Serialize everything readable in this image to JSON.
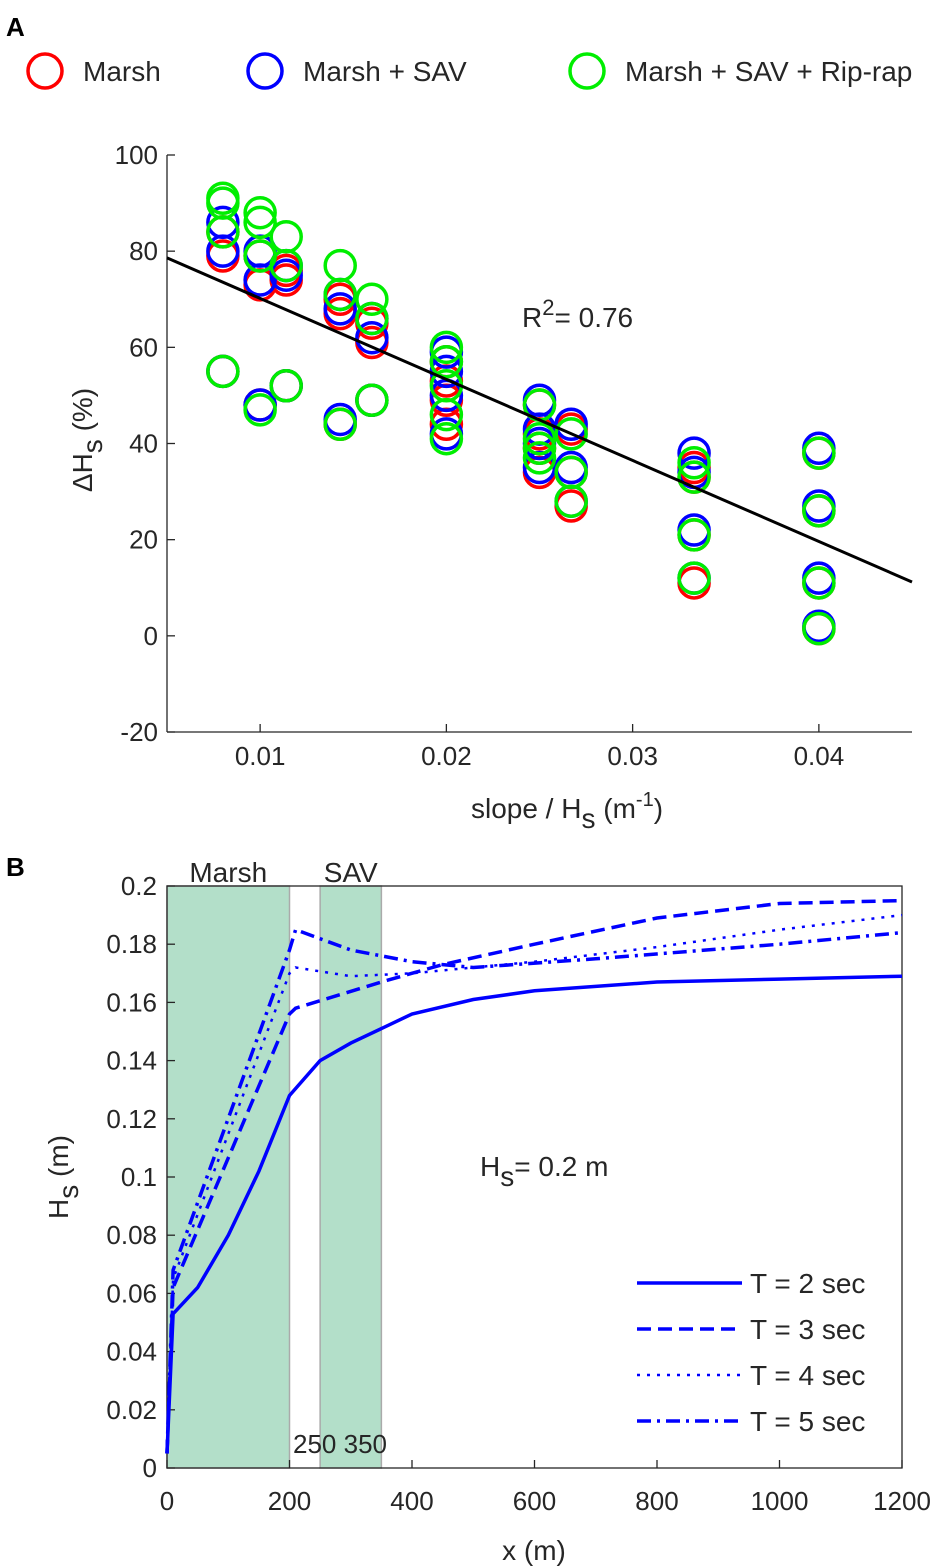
{
  "chart_data": [
    {
      "panel": "A",
      "type": "scatter",
      "legend": {
        "placement": "top",
        "entries": [
          "Marsh",
          "Marsh + SAV",
          "Marsh + SAV + Rip-rap"
        ]
      },
      "colors": {
        "Marsh": "#ff0000",
        "Marsh + SAV": "#0000ff",
        "Marsh + SAV + Rip-rap": "#00ee00",
        "fit": "#000000"
      },
      "xlabel": {
        "main": "slope / H",
        "sub": "s",
        "rest": " (m",
        "sup": "-1",
        "end": ")"
      },
      "ylabel": {
        "main": "ΔH",
        "sub": "s",
        "rest": " (%)"
      },
      "xlim": [
        0.005,
        0.045
      ],
      "ylim": [
        -20,
        100
      ],
      "xticks": [
        "0.01",
        "0.02",
        "0.03",
        "0.04"
      ],
      "yticks": [
        "-20",
        "0",
        "20",
        "40",
        "60",
        "80",
        "100"
      ],
      "annotation": {
        "main": "R",
        "sup": "2",
        "rest": "= 0.76"
      },
      "fit_line": {
        "x": [
          0.005,
          0.045
        ],
        "y": [
          78.6,
          11.2
        ]
      },
      "series": [
        {
          "name": "Marsh",
          "points": [
            [
              0.008,
              79
            ],
            [
              0.008,
              84
            ],
            [
              0.008,
              55
            ],
            [
              0.01,
              73
            ],
            [
              0.01,
              79
            ],
            [
              0.01,
              48
            ],
            [
              0.0114,
              74
            ],
            [
              0.0114,
              76
            ],
            [
              0.0114,
              52
            ],
            [
              0.0143,
              67
            ],
            [
              0.0143,
              70
            ],
            [
              0.0143,
              44
            ],
            [
              0.016,
              61
            ],
            [
              0.016,
              65
            ],
            [
              0.016,
              49
            ],
            [
              0.02,
              44
            ],
            [
              0.02,
              49
            ],
            [
              0.02,
              53
            ],
            [
              0.02,
              57
            ],
            [
              0.025,
              34
            ],
            [
              0.025,
              39
            ],
            [
              0.025,
              42
            ],
            [
              0.025,
              48
            ],
            [
              0.0267,
              27
            ],
            [
              0.0267,
              34
            ],
            [
              0.0267,
              43
            ],
            [
              0.0333,
              11
            ],
            [
              0.0333,
              21
            ],
            [
              0.0333,
              33
            ],
            [
              0.0333,
              35
            ],
            [
              0.04,
              1.5
            ],
            [
              0.04,
              11
            ],
            [
              0.04,
              26
            ],
            [
              0.04,
              38
            ]
          ]
        },
        {
          "name": "Marsh + SAV",
          "points": [
            [
              0.008,
              80
            ],
            [
              0.008,
              86
            ],
            [
              0.008,
              55
            ],
            [
              0.01,
              74
            ],
            [
              0.01,
              80
            ],
            [
              0.01,
              48
            ],
            [
              0.0114,
              75
            ],
            [
              0.0114,
              77
            ],
            [
              0.0114,
              52
            ],
            [
              0.0143,
              68
            ],
            [
              0.0143,
              71
            ],
            [
              0.0143,
              45
            ],
            [
              0.016,
              62
            ],
            [
              0.016,
              66
            ],
            [
              0.016,
              49
            ],
            [
              0.02,
              42
            ],
            [
              0.02,
              50
            ],
            [
              0.02,
              55
            ],
            [
              0.02,
              59
            ],
            [
              0.025,
              35
            ],
            [
              0.025,
              40
            ],
            [
              0.025,
              43
            ],
            [
              0.025,
              49
            ],
            [
              0.0267,
              28
            ],
            [
              0.0267,
              35
            ],
            [
              0.0267,
              44
            ],
            [
              0.0333,
              12
            ],
            [
              0.0333,
              22
            ],
            [
              0.0333,
              34
            ],
            [
              0.0333,
              38
            ],
            [
              0.04,
              2
            ],
            [
              0.04,
              12
            ],
            [
              0.04,
              27
            ],
            [
              0.04,
              39
            ]
          ]
        },
        {
          "name": "Marsh + SAV + Rip-rap",
          "points": [
            [
              0.008,
              84
            ],
            [
              0.008,
              90
            ],
            [
              0.008,
              91
            ],
            [
              0.008,
              55
            ],
            [
              0.01,
              79
            ],
            [
              0.01,
              86
            ],
            [
              0.01,
              88
            ],
            [
              0.01,
              47
            ],
            [
              0.0114,
              77
            ],
            [
              0.0114,
              83
            ],
            [
              0.0114,
              52
            ],
            [
              0.0143,
              71
            ],
            [
              0.0143,
              77
            ],
            [
              0.0143,
              44
            ],
            [
              0.016,
              66
            ],
            [
              0.016,
              70
            ],
            [
              0.016,
              49
            ],
            [
              0.02,
              41
            ],
            [
              0.02,
              46
            ],
            [
              0.02,
              52
            ],
            [
              0.02,
              57
            ],
            [
              0.02,
              60
            ],
            [
              0.025,
              37
            ],
            [
              0.025,
              39
            ],
            [
              0.025,
              41
            ],
            [
              0.025,
              48
            ],
            [
              0.0267,
              28
            ],
            [
              0.0267,
              34
            ],
            [
              0.0267,
              42
            ],
            [
              0.0333,
              12
            ],
            [
              0.0333,
              21
            ],
            [
              0.0333,
              33
            ],
            [
              0.0333,
              36
            ],
            [
              0.04,
              1.5
            ],
            [
              0.04,
              11
            ],
            [
              0.04,
              26
            ],
            [
              0.04,
              38
            ]
          ]
        }
      ]
    },
    {
      "panel": "B",
      "type": "line",
      "xlabel": "x (m)",
      "ylabel": {
        "main": "H",
        "sub": "s",
        "rest": " (m)"
      },
      "xlim": [
        0,
        1200
      ],
      "ylim": [
        0,
        0.2
      ],
      "xticks": [
        "0",
        "200",
        "400",
        "600",
        "800",
        "1000",
        "1200"
      ],
      "yticks": [
        "0",
        "0.02",
        "0.04",
        "0.06",
        "0.08",
        "0.1",
        "0.12",
        "0.14",
        "0.16",
        "0.18",
        "0.2"
      ],
      "regions": [
        {
          "label": "Marsh",
          "x": [
            0,
            200
          ],
          "color": "#b3dfc9"
        },
        {
          "label": "SAV",
          "x": [
            250,
            350
          ],
          "color": "#b3dfc9"
        }
      ],
      "region_annotation": "250 350",
      "annotation": {
        "main": "H",
        "sub": "s",
        "rest": "= 0.2 m"
      },
      "legend": {
        "placement": "bottom-right"
      },
      "line_color": "#0000ff",
      "series": [
        {
          "name": "T = 2 sec",
          "style": "solid",
          "x": [
            0,
            10,
            50,
            100,
            150,
            200,
            250,
            300,
            350,
            400,
            500,
            600,
            800,
            1000,
            1200
          ],
          "y": [
            0.005,
            0.053,
            0.062,
            0.08,
            0.102,
            0.128,
            0.14,
            0.146,
            0.151,
            0.156,
            0.161,
            0.164,
            0.167,
            0.168,
            0.169
          ]
        },
        {
          "name": "T = 3 sec",
          "style": "dashed",
          "x": [
            0,
            10,
            200,
            210,
            350,
            450,
            600,
            800,
            1000,
            1200
          ],
          "y": [
            0.005,
            0.062,
            0.156,
            0.158,
            0.167,
            0.173,
            0.18,
            0.189,
            0.194,
            0.195
          ]
        },
        {
          "name": "T = 4 sec",
          "style": "dotted",
          "x": [
            0,
            10,
            200,
            210,
            300,
            400,
            600,
            800,
            1000,
            1200
          ],
          "y": [
            0.005,
            0.065,
            0.17,
            0.172,
            0.169,
            0.17,
            0.174,
            0.179,
            0.185,
            0.19
          ]
        },
        {
          "name": "T = 5 sec",
          "style": "dashdot",
          "x": [
            0,
            10,
            200,
            210,
            300,
            400,
            500,
            700,
            1000,
            1200
          ],
          "y": [
            0.005,
            0.068,
            0.178,
            0.185,
            0.178,
            0.174,
            0.172,
            0.175,
            0.18,
            0.184
          ]
        }
      ]
    }
  ],
  "panel_labels": [
    "A",
    "B"
  ]
}
